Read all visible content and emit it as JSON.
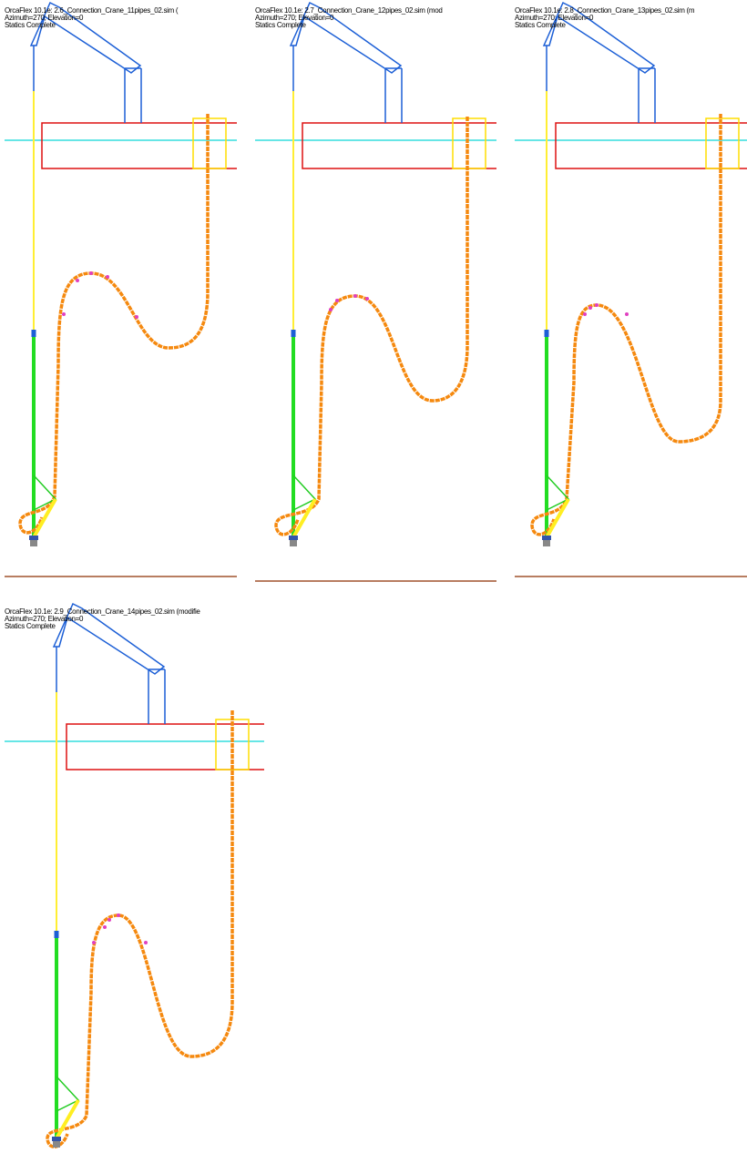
{
  "panels": [
    {
      "title": "OrcaFlex 10.1e: 2.6_Connection_Crane_11pipes_02.sim (",
      "view": "Azimuth=270; Elevation=0",
      "status": "Statics Complete"
    },
    {
      "title": "OrcaFlex 10.1e: 2.7_Connection_Crane_12pipes_02.sim (mod",
      "view": "Azimuth=270; Elevation=0",
      "status": "Statics Complete"
    },
    {
      "title": "OrcaFlex 10.1e: 2.8_Connection_Crane_13pipes_02.sim (m",
      "view": "Azimuth=270; Elevation=0",
      "status": "Statics Complete"
    },
    {
      "title": "OrcaFlex 10.1e: 2.9_Connection_Crane_14pipes_02.sim (modifie",
      "view": "Azimuth=270; Elevation=0",
      "status": "Statics Complete"
    }
  ]
}
